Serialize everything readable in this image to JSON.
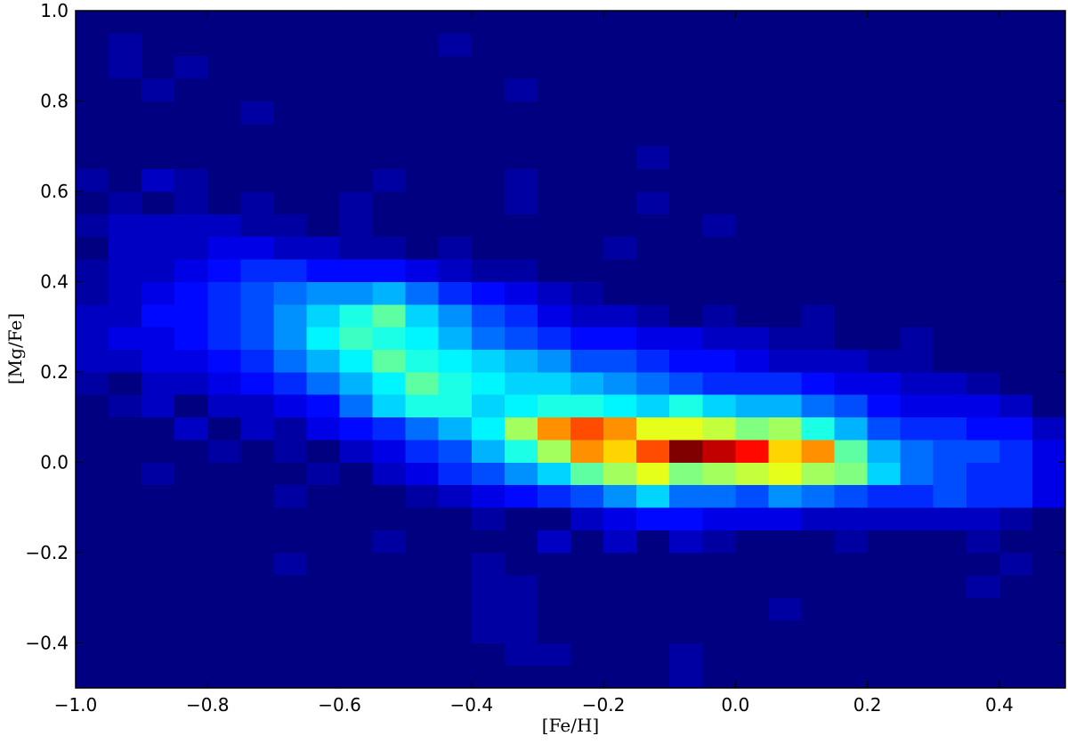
{
  "chart_data": {
    "type": "heatmap",
    "colormap": "jet",
    "xlabel": "[Fe/H]",
    "ylabel": "[Mg/Fe]",
    "xlim": [
      -1.0,
      0.5
    ],
    "ylim": [
      -0.5,
      1.0
    ],
    "xticks": [
      {
        "value": -1.0,
        "label": "−1.0"
      },
      {
        "value": -0.8,
        "label": "−0.8"
      },
      {
        "value": -0.6,
        "label": "−0.6"
      },
      {
        "value": -0.4,
        "label": "−0.4"
      },
      {
        "value": -0.2,
        "label": "−0.2"
      },
      {
        "value": 0.0,
        "label": "0.0"
      },
      0.2,
      0.4
    ],
    "yticks": [
      {
        "value": -0.4,
        "label": "−0.4"
      },
      {
        "value": -0.2,
        "label": "−0.2"
      },
      {
        "value": 0.0,
        "label": "0.0"
      },
      0.2,
      0.4,
      0.6,
      0.8,
      {
        "value": 1.0,
        "label": "1.0"
      }
    ],
    "xbins": [
      -1.0,
      -0.95,
      -0.9,
      -0.85,
      -0.8,
      -0.75,
      -0.7,
      -0.65,
      -0.6,
      -0.55,
      -0.5,
      -0.45,
      -0.4,
      -0.35,
      -0.3,
      -0.25,
      -0.2,
      -0.15,
      -0.1,
      -0.05,
      0.0,
      0.05,
      0.1,
      0.15,
      0.2,
      0.25,
      0.3,
      0.35,
      0.4,
      0.45,
      0.5
    ],
    "ybins": [
      -0.5,
      -0.45,
      -0.4,
      -0.35,
      -0.3,
      -0.25,
      -0.2,
      -0.15,
      -0.1,
      -0.05,
      0.0,
      0.05,
      0.1,
      0.15,
      0.2,
      0.25,
      0.3,
      0.35,
      0.4,
      0.45,
      0.5,
      0.55,
      0.6,
      0.65,
      0.7,
      0.75,
      0.8,
      0.85,
      0.9,
      0.95,
      1.0
    ],
    "z": [
      [
        0,
        0,
        0,
        0,
        0,
        0,
        0,
        0,
        0,
        0,
        0,
        0,
        0,
        0,
        0,
        0,
        0,
        0,
        1,
        0,
        0,
        0,
        0,
        0,
        0,
        0,
        0,
        0,
        0,
        0
      ],
      [
        0,
        0,
        0,
        0,
        0,
        0,
        0,
        0,
        0,
        0,
        0,
        0,
        0,
        1,
        1,
        0,
        0,
        0,
        1,
        0,
        0,
        0,
        0,
        0,
        0,
        0,
        0,
        0,
        0,
        0
      ],
      [
        0,
        0,
        0,
        0,
        0,
        0,
        0,
        0,
        0,
        0,
        0,
        0,
        1,
        1,
        0,
        0,
        0,
        0,
        0,
        0,
        0,
        0,
        0,
        0,
        0,
        0,
        0,
        0,
        0,
        0
      ],
      [
        0,
        0,
        0,
        0,
        0,
        0,
        0,
        0,
        0,
        0,
        0,
        0,
        1,
        1,
        0,
        0,
        0,
        0,
        0,
        0,
        0,
        1,
        0,
        0,
        0,
        0,
        0,
        0,
        0,
        0
      ],
      [
        0,
        0,
        0,
        0,
        0,
        0,
        0,
        0,
        0,
        0,
        0,
        0,
        1,
        1,
        0,
        0,
        0,
        0,
        0,
        0,
        0,
        0,
        0,
        0,
        0,
        0,
        0,
        1,
        0,
        0
      ],
      [
        0,
        0,
        0,
        0,
        0,
        0,
        1,
        0,
        0,
        0,
        0,
        0,
        1,
        0,
        0,
        0,
        0,
        0,
        0,
        0,
        0,
        0,
        0,
        0,
        0,
        0,
        0,
        0,
        1,
        0
      ],
      [
        0,
        0,
        0,
        0,
        0,
        0,
        0,
        0,
        0,
        1,
        0,
        0,
        0,
        0,
        2,
        0,
        2,
        0,
        2,
        1,
        0,
        0,
        0,
        1,
        0,
        0,
        0,
        1,
        0,
        0
      ],
      [
        0,
        0,
        0,
        0,
        0,
        0,
        0,
        0,
        0,
        0,
        0,
        0,
        1,
        0,
        0,
        2,
        3,
        4,
        4,
        3,
        3,
        3,
        2,
        2,
        2,
        2,
        2,
        2,
        1,
        0
      ],
      [
        0,
        0,
        0,
        0,
        0,
        0,
        1,
        0,
        0,
        0,
        1,
        2,
        3,
        4,
        5,
        6,
        8,
        10,
        7,
        7,
        6,
        8,
        7,
        6,
        5,
        5,
        6,
        5,
        5,
        3
      ],
      [
        0,
        0,
        1,
        0,
        0,
        0,
        0,
        1,
        0,
        2,
        3,
        5,
        6,
        8,
        10,
        14,
        16,
        18,
        15,
        16,
        17,
        18,
        16,
        15,
        10,
        7,
        6,
        5,
        5,
        3
      ],
      [
        0,
        0,
        0,
        0,
        1,
        0,
        1,
        0,
        2,
        3,
        5,
        6,
        9,
        12,
        16,
        22,
        20,
        24,
        30,
        28,
        26,
        20,
        22,
        14,
        9,
        7,
        6,
        6,
        5,
        3
      ],
      [
        0,
        0,
        0,
        2,
        0,
        2,
        1,
        3,
        4,
        5,
        7,
        9,
        11,
        16,
        22,
        24,
        22,
        18,
        18,
        17,
        15,
        16,
        12,
        9,
        6,
        5,
        5,
        4,
        4,
        2
      ],
      [
        0,
        1,
        2,
        0,
        2,
        2,
        3,
        4,
        7,
        10,
        12,
        12,
        10,
        11,
        12,
        12,
        11,
        10,
        12,
        10,
        9,
        9,
        7,
        6,
        4,
        3,
        3,
        3,
        2,
        0
      ],
      [
        1,
        0,
        2,
        2,
        3,
        4,
        5,
        7,
        9,
        11,
        14,
        12,
        11,
        10,
        10,
        9,
        8,
        7,
        6,
        5,
        5,
        5,
        4,
        3,
        3,
        2,
        2,
        1,
        0,
        0
      ],
      [
        2,
        2,
        3,
        3,
        4,
        5,
        7,
        9,
        11,
        14,
        12,
        11,
        10,
        9,
        8,
        6,
        6,
        5,
        4,
        4,
        3,
        2,
        2,
        2,
        1,
        1,
        0,
        0,
        0,
        0
      ],
      [
        2,
        3,
        3,
        4,
        5,
        6,
        8,
        11,
        13,
        12,
        11,
        9,
        7,
        6,
        5,
        4,
        4,
        3,
        3,
        2,
        2,
        1,
        1,
        0,
        0,
        1,
        0,
        0,
        0,
        0
      ],
      [
        2,
        2,
        4,
        4,
        5,
        6,
        8,
        10,
        12,
        14,
        10,
        8,
        6,
        5,
        3,
        2,
        2,
        1,
        0,
        1,
        0,
        0,
        1,
        0,
        0,
        0,
        0,
        0,
        0,
        0
      ],
      [
        1,
        2,
        3,
        4,
        5,
        6,
        7,
        8,
        8,
        9,
        7,
        5,
        4,
        3,
        2,
        1,
        0,
        0,
        0,
        0,
        0,
        0,
        0,
        0,
        0,
        0,
        0,
        0,
        0,
        0
      ],
      [
        1,
        2,
        2,
        3,
        4,
        5,
        5,
        4,
        4,
        4,
        3,
        2,
        1,
        1,
        0,
        0,
        0,
        0,
        0,
        0,
        0,
        0,
        0,
        0,
        0,
        0,
        0,
        0,
        0,
        0
      ],
      [
        0,
        2,
        2,
        2,
        3,
        3,
        2,
        2,
        1,
        1,
        0,
        1,
        0,
        0,
        0,
        0,
        1,
        0,
        0,
        0,
        0,
        0,
        0,
        0,
        0,
        0,
        0,
        0,
        0,
        0
      ],
      [
        1,
        2,
        2,
        2,
        2,
        1,
        1,
        0,
        1,
        0,
        0,
        0,
        0,
        0,
        0,
        0,
        0,
        0,
        0,
        1,
        0,
        0,
        0,
        0,
        0,
        0,
        0,
        0,
        0,
        0
      ],
      [
        0,
        1,
        0,
        1,
        0,
        1,
        0,
        0,
        1,
        0,
        0,
        0,
        0,
        1,
        0,
        0,
        0,
        1,
        0,
        0,
        0,
        0,
        0,
        0,
        0,
        0,
        0,
        0,
        0,
        0
      ],
      [
        1,
        0,
        2,
        1,
        0,
        0,
        0,
        0,
        0,
        1,
        0,
        0,
        0,
        1,
        0,
        0,
        0,
        0,
        0,
        0,
        0,
        0,
        0,
        0,
        0,
        0,
        0,
        0,
        0,
        0
      ],
      [
        0,
        0,
        0,
        0,
        0,
        0,
        0,
        0,
        0,
        0,
        0,
        0,
        0,
        0,
        0,
        0,
        0,
        1,
        0,
        0,
        0,
        0,
        0,
        0,
        0,
        0,
        0,
        0,
        0,
        0
      ],
      [
        0,
        0,
        0,
        0,
        0,
        0,
        0,
        0,
        0,
        0,
        0,
        0,
        0,
        0,
        0,
        0,
        0,
        0,
        0,
        0,
        0,
        0,
        0,
        0,
        0,
        0,
        0,
        0,
        0,
        0
      ],
      [
        0,
        0,
        0,
        0,
        0,
        1,
        0,
        0,
        0,
        0,
        0,
        0,
        0,
        0,
        0,
        0,
        0,
        0,
        0,
        0,
        0,
        0,
        0,
        0,
        0,
        0,
        0,
        0,
        0,
        0
      ],
      [
        0,
        0,
        1,
        0,
        0,
        0,
        0,
        0,
        0,
        0,
        0,
        0,
        0,
        1,
        0,
        0,
        0,
        0,
        0,
        0,
        0,
        0,
        0,
        0,
        0,
        0,
        0,
        0,
        0,
        0
      ],
      [
        0,
        1,
        0,
        1,
        0,
        0,
        0,
        0,
        0,
        0,
        0,
        0,
        0,
        0,
        0,
        0,
        0,
        0,
        0,
        0,
        0,
        0,
        0,
        0,
        0,
        0,
        0,
        0,
        0,
        0
      ],
      [
        0,
        1,
        0,
        0,
        0,
        0,
        0,
        0,
        0,
        0,
        0,
        1,
        0,
        0,
        0,
        0,
        0,
        0,
        0,
        0,
        0,
        0,
        0,
        0,
        0,
        0,
        0,
        0,
        0,
        0
      ],
      [
        0,
        0,
        0,
        0,
        0,
        0,
        0,
        0,
        0,
        0,
        0,
        0,
        0,
        0,
        0,
        0,
        0,
        0,
        0,
        0,
        0,
        0,
        0,
        0,
        0,
        0,
        0,
        0,
        0,
        0
      ]
    ]
  }
}
